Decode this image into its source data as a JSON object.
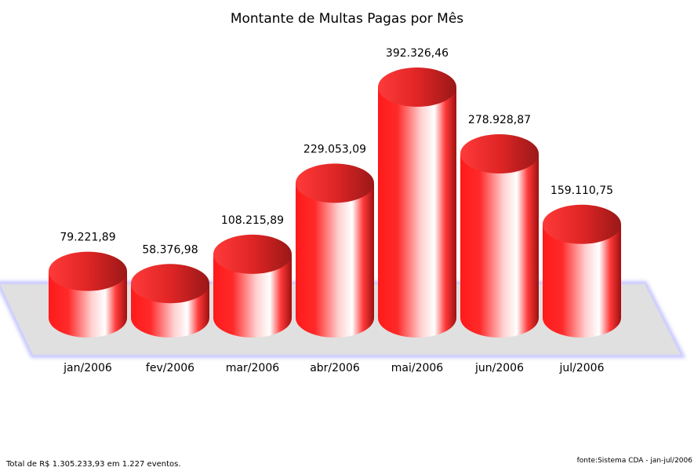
{
  "chart_data": {
    "type": "bar",
    "title": "Montante de Multas Pagas por Mês",
    "categories": [
      "jan/2006",
      "fev/2006",
      "mar/2006",
      "abr/2006",
      "mai/2006",
      "jun/2006",
      "jul/2006"
    ],
    "values": [
      79221.89,
      58376.98,
      108215.89,
      229053.09,
      392326.46,
      278928.87,
      159110.75
    ],
    "data_labels": [
      "79.221,89",
      "58.376,98",
      "108.215,89",
      "229.053,09",
      "392.326,46",
      "278.928,87",
      "159.110,75"
    ],
    "xlabel": "",
    "ylabel": "",
    "style": "3d-cylinder",
    "colors": {
      "bar": "#ff1a1a",
      "bar_dark": "#a00f0f",
      "floor": "#e0e0e0",
      "floor_border": "#c8c8ff"
    }
  },
  "footer": {
    "total": "Total de R$ 1.305.233,93 em 1.227 eventos.",
    "source": "fonte:Sistema CDA - jan-jul/2006"
  }
}
